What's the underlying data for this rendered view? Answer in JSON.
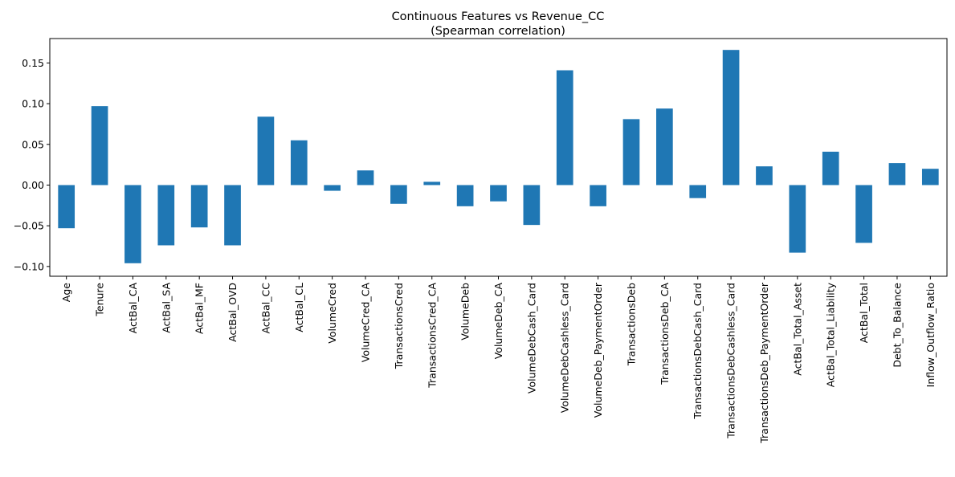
{
  "chart_data": {
    "type": "bar",
    "title": "Continuous Features vs Revenue_CC",
    "subtitle": "(Spearman correlation)",
    "xlabel": "",
    "ylabel": "",
    "ylim": [
      -0.112,
      0.18
    ],
    "yticks": [
      -0.1,
      -0.05,
      0.0,
      0.05,
      0.1,
      0.15
    ],
    "ytick_labels": [
      "−0.10",
      "−0.05",
      "0.00",
      "0.05",
      "0.10",
      "0.15"
    ],
    "grid": false,
    "legend": "none",
    "bar_color": "#1f77b4",
    "categories": [
      "Age",
      "Tenure",
      "ActBal_CA",
      "ActBal_SA",
      "ActBal_MF",
      "ActBal_OVD",
      "ActBal_CC",
      "ActBal_CL",
      "VolumeCred",
      "VolumeCred_CA",
      "TransactionsCred",
      "TransactionsCred_CA",
      "VolumeDeb",
      "VolumeDeb_CA",
      "VolumeDebCash_Card",
      "VolumeDebCashless_Card",
      "VolumeDeb_PaymentOrder",
      "TransactionsDeb",
      "TransactionsDeb_CA",
      "TransactionsDebCash_Card",
      "TransactionsDebCashless_Card",
      "TransactionsDeb_PaymentOrder",
      "ActBal_Total_Asset",
      "ActBal_Total_Liability",
      "ActBal_Total",
      "Debt_To_Balance",
      "Inflow_Outflow_Ratio"
    ],
    "values": [
      -0.053,
      0.097,
      -0.096,
      -0.074,
      -0.052,
      -0.074,
      0.084,
      0.055,
      -0.007,
      0.018,
      -0.023,
      0.004,
      -0.026,
      -0.02,
      -0.049,
      0.141,
      -0.026,
      0.081,
      0.094,
      -0.016,
      0.166,
      0.023,
      -0.083,
      0.041,
      -0.071,
      0.027,
      0.02
    ]
  }
}
